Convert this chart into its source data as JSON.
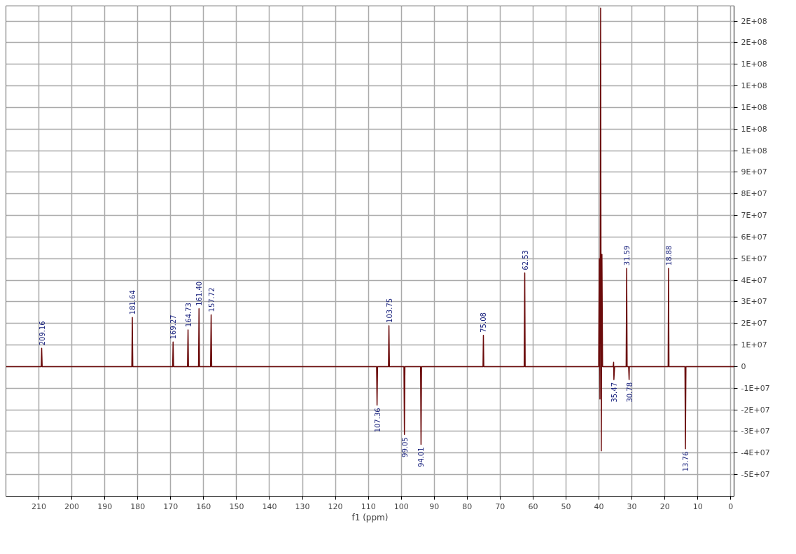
{
  "chart_data": {
    "type": "line",
    "xlabel": "f1 (ppm)",
    "x": [
      220,
      209.3,
      209.16,
      209.0,
      181.8,
      181.64,
      181.5,
      169.4,
      169.27,
      169.1,
      164.9,
      164.73,
      164.6,
      161.55,
      161.4,
      161.25,
      157.9,
      157.72,
      157.55,
      107.5,
      107.36,
      107.2,
      103.9,
      103.75,
      103.6,
      99.2,
      99.05,
      98.9,
      94.15,
      94.01,
      93.85,
      75.2,
      75.08,
      74.95,
      62.7,
      62.53,
      62.4,
      40.1,
      39.9,
      39.7,
      39.5,
      39.3,
      39.1,
      38.9,
      35.7,
      35.55,
      35.47,
      35.25,
      35.1,
      31.75,
      31.59,
      31.45,
      31.0,
      30.85,
      30.78,
      30.55,
      19.0,
      18.88,
      18.75,
      13.9,
      13.76,
      13.6,
      -1
    ],
    "series": [
      {
        "color": "#6b0a0a",
        "values": [
          0,
          0,
          8500000,
          0,
          0,
          22800000,
          0,
          0,
          11400000,
          0,
          0,
          17000000,
          0,
          0,
          26800000,
          0,
          0,
          24000000,
          0,
          0,
          -17800000,
          0,
          0,
          19000000,
          0,
          0,
          -31400000,
          0,
          0,
          -36000000,
          0,
          0,
          14500000,
          0,
          0,
          43400000,
          0,
          0,
          50000000,
          -15000000,
          166000000,
          -39000000,
          52000000,
          0,
          0,
          2000000,
          -6000000,
          0,
          0,
          0,
          45500000,
          0,
          0,
          -6000000,
          0,
          0,
          0,
          45500000,
          0,
          0,
          -38000000,
          0,
          0
        ]
      }
    ],
    "xlim": [
      220,
      -1
    ],
    "ylim": [
      -60000000,
      167000000
    ],
    "xticks": [
      210,
      200,
      190,
      180,
      170,
      160,
      150,
      140,
      130,
      120,
      110,
      100,
      90,
      80,
      70,
      60,
      50,
      40,
      30,
      20,
      10,
      0
    ],
    "yticks": [
      {
        "value": -50000000,
        "label": "-5E+07"
      },
      {
        "value": -40000000,
        "label": "-4E+07"
      },
      {
        "value": -30000000,
        "label": "-3E+07"
      },
      {
        "value": -20000000,
        "label": "-2E+07"
      },
      {
        "value": -10000000,
        "label": "-1E+07"
      },
      0,
      {
        "value": 10000000,
        "label": "1E+07"
      },
      {
        "value": 20000000,
        "label": "2E+07"
      },
      {
        "value": 30000000,
        "label": "3E+07"
      },
      {
        "value": 40000000,
        "label": "4E+07"
      },
      {
        "value": 50000000,
        "label": "5E+07"
      },
      {
        "value": 60000000,
        "label": "6E+07"
      },
      {
        "value": 70000000,
        "label": "7E+07"
      },
      {
        "value": 80000000,
        "label": "8E+07"
      },
      {
        "value": 90000000,
        "label": "9E+07"
      },
      {
        "value": 100000000,
        "label": "1E+08"
      },
      {
        "value": 110000000,
        "label": "1E+08"
      },
      {
        "value": 120000000,
        "label": "1E+08"
      },
      {
        "value": 130000000,
        "label": "1E+08"
      },
      {
        "value": 140000000,
        "label": "1E+08"
      },
      {
        "value": 150000000,
        "label": "2E+08"
      },
      {
        "value": 160000000,
        "label": "2E+08"
      }
    ],
    "grid": true,
    "marker": "none",
    "line_style": "solid",
    "annotations": [
      {
        "text": "209.16",
        "x": 209.16,
        "y": 8500000
      },
      {
        "text": "181.64",
        "x": 181.64,
        "y": 22800000
      },
      {
        "text": "169.27",
        "x": 169.27,
        "y": 11400000
      },
      {
        "text": "164.73",
        "x": 164.73,
        "y": 17000000
      },
      {
        "text": "161.40",
        "x": 161.4,
        "y": 26800000
      },
      {
        "text": "157.72",
        "x": 157.72,
        "y": 24000000
      },
      {
        "text": "107.36",
        "x": 107.36,
        "y": -17800000
      },
      {
        "text": "103.75",
        "x": 103.75,
        "y": 19000000
      },
      {
        "text": "99.05",
        "x": 99.05,
        "y": -31400000
      },
      {
        "text": "94.01",
        "x": 94.01,
        "y": -36000000
      },
      {
        "text": "75.08",
        "x": 75.08,
        "y": 14500000
      },
      {
        "text": "62.53",
        "x": 62.53,
        "y": 43400000
      },
      {
        "text": "35.47",
        "x": 35.47,
        "y": -6000000
      },
      {
        "text": "31.59",
        "x": 31.59,
        "y": 45500000
      },
      {
        "text": "30.78",
        "x": 30.78,
        "y": -6000000
      },
      {
        "text": "18.88",
        "x": 18.88,
        "y": 45500000
      },
      {
        "text": "13.76",
        "x": 13.76,
        "y": -38000000
      }
    ]
  }
}
